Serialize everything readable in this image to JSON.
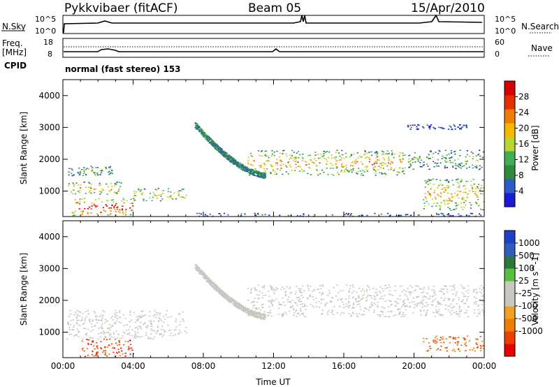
{
  "header": {
    "station": "Pykkvibaer (fitACF)",
    "beam": "Beam 05",
    "date": "15/Apr/2010"
  },
  "strip1": {
    "label": "N.Sky",
    "left_ticks": [
      "10^5",
      "10^0"
    ],
    "right_ticks": [
      "10^5",
      "10^0"
    ],
    "right_label": "N.Search"
  },
  "strip2": {
    "label_line1": "Freq.",
    "label_line2": "[MHz]",
    "left_ticks": [
      "18",
      "8"
    ],
    "right_ticks": [
      "60",
      "0"
    ],
    "right_label": "Nave"
  },
  "cpid": {
    "label": "CPID",
    "text": "normal (fast stereo) 153"
  },
  "colors": {
    "power": [
      "#1a1ad8",
      "#2b5cc7",
      "#2f8a3d",
      "#3fae55",
      "#b7d62e",
      "#f5b800",
      "#f07d00",
      "#e33000",
      "#d80000"
    ],
    "velocity": [
      "#e60000",
      "#f03d00",
      "#f07d00",
      "#f0a020",
      "#c8c8c0",
      "#c8c8c0",
      "#55c040",
      "#2a7a3a",
      "#2e5fc0",
      "#1e3fc8"
    ]
  },
  "chart_data": [
    {
      "type": "heatmap",
      "name": "power-panel",
      "ylabel": "Slant Range [km]",
      "yticks": [
        "1000",
        "2000",
        "3000",
        "4000"
      ],
      "ylim": [
        200,
        4500
      ],
      "xlim": [
        0,
        24
      ],
      "colorbar": {
        "label": "Power [dB]",
        "ticks": [
          "4",
          "8",
          "12",
          "16",
          "20",
          "24",
          "28"
        ],
        "range": [
          0,
          32
        ]
      },
      "echo_regions": [
        {
          "t": [
            0.3,
            2.9
          ],
          "r": [
            1500,
            1800
          ],
          "level": 0.35
        },
        {
          "t": [
            0.2,
            3.3
          ],
          "r": [
            900,
            1300
          ],
          "level": 0.6
        },
        {
          "t": [
            0.5,
            4.0
          ],
          "r": [
            250,
            800
          ],
          "level": 0.9
        },
        {
          "t": [
            4.0,
            7.0
          ],
          "r": [
            700,
            1100
          ],
          "level": 0.55
        },
        {
          "t": [
            7.5,
            24.0
          ],
          "r": [
            220,
            320
          ],
          "level": 0.15
        },
        {
          "t": [
            10.5,
            19.5
          ],
          "r": [
            1500,
            2300
          ],
          "level": 0.6
        },
        {
          "t": [
            19.5,
            24.0
          ],
          "r": [
            1700,
            2300
          ],
          "level": 0.35
        },
        {
          "t": [
            20.5,
            24.0
          ],
          "r": [
            400,
            1400
          ],
          "level": 0.6
        },
        {
          "t": [
            19.5,
            23.0
          ],
          "r": [
            2950,
            3100
          ],
          "level": 0.1
        }
      ]
    },
    {
      "type": "heatmap",
      "name": "velocity-panel",
      "xlabel": "Time UT",
      "xticks": [
        "00:00",
        "04:00",
        "08:00",
        "12:00",
        "16:00",
        "20:00",
        "00:00"
      ],
      "ylabel": "Slant Range [km]",
      "yticks": [
        "1000",
        "2000",
        "3000",
        "4000"
      ],
      "ylim": [
        200,
        4500
      ],
      "xlim": [
        0,
        24
      ],
      "colorbar": {
        "label": "Velocity [m s^-1]",
        "ticks": [
          "1000",
          "500",
          "100",
          "25",
          "-25",
          "-100",
          "-500",
          "-1000"
        ]
      },
      "echo_regions": [
        {
          "t": [
            0.2,
            7.0
          ],
          "r": [
            800,
            1700
          ],
          "level": 0.0
        },
        {
          "t": [
            1.0,
            4.0
          ],
          "r": [
            250,
            800
          ],
          "level": -0.7
        },
        {
          "t": [
            10.5,
            24.0
          ],
          "r": [
            1500,
            2500
          ],
          "level": 0.0
        },
        {
          "t": [
            20.5,
            24.0
          ],
          "r": [
            400,
            900
          ],
          "level": -0.6
        }
      ]
    }
  ]
}
